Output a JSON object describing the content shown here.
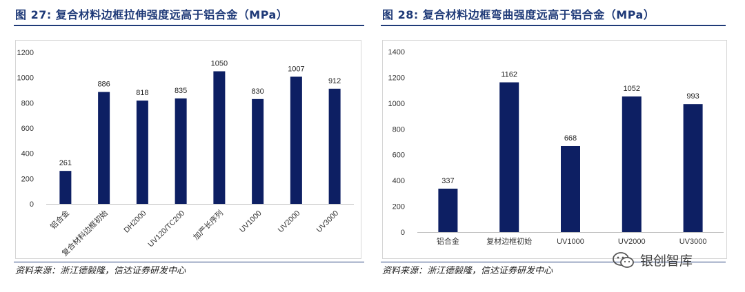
{
  "chart_data": [
    {
      "type": "bar",
      "title": "图 27: 复合材料边框拉伸强度远高于铝合金（MPa）",
      "source": "资料来源：浙江德毅隆，信达证券研发中心",
      "categories": [
        "铝合金",
        "复合材料边框初始",
        "DH2000",
        "UV120/TC200",
        "加严长序列",
        "UV1000",
        "UV2000",
        "UV3000"
      ],
      "values": [
        261,
        886,
        818,
        835,
        1050,
        830,
        1007,
        912
      ],
      "value_labels": [
        "261",
        "886",
        "818",
        "835",
        "1050",
        "830",
        "1007",
        "912"
      ],
      "yticks": [
        "0",
        "200",
        "400",
        "600",
        "800",
        "1000",
        "1200"
      ],
      "ylim": [
        0,
        1200
      ],
      "xlabel": "",
      "ylabel": "",
      "color": "#0d1f63"
    },
    {
      "type": "bar",
      "title": "图 28: 复合材料边框弯曲强度远高于铝合金（MPa）",
      "source": "资料来源：浙江德毅隆，信达证券研发中心",
      "categories": [
        "铝合金",
        "复材边框初始",
        "UV1000",
        "UV2000",
        "UV3000"
      ],
      "values": [
        337,
        1162,
        668,
        1052,
        993
      ],
      "value_labels": [
        "337",
        "1162",
        "668",
        "1052",
        "993"
      ],
      "yticks": [
        "0",
        "200",
        "400",
        "600",
        "800",
        "1000",
        "1200",
        "1400"
      ],
      "ylim": [
        0,
        1400
      ],
      "xlabel": "",
      "ylabel": "",
      "color": "#0d1f63"
    }
  ],
  "watermark": {
    "text": "银创智库",
    "icon": "wechat-icon"
  }
}
